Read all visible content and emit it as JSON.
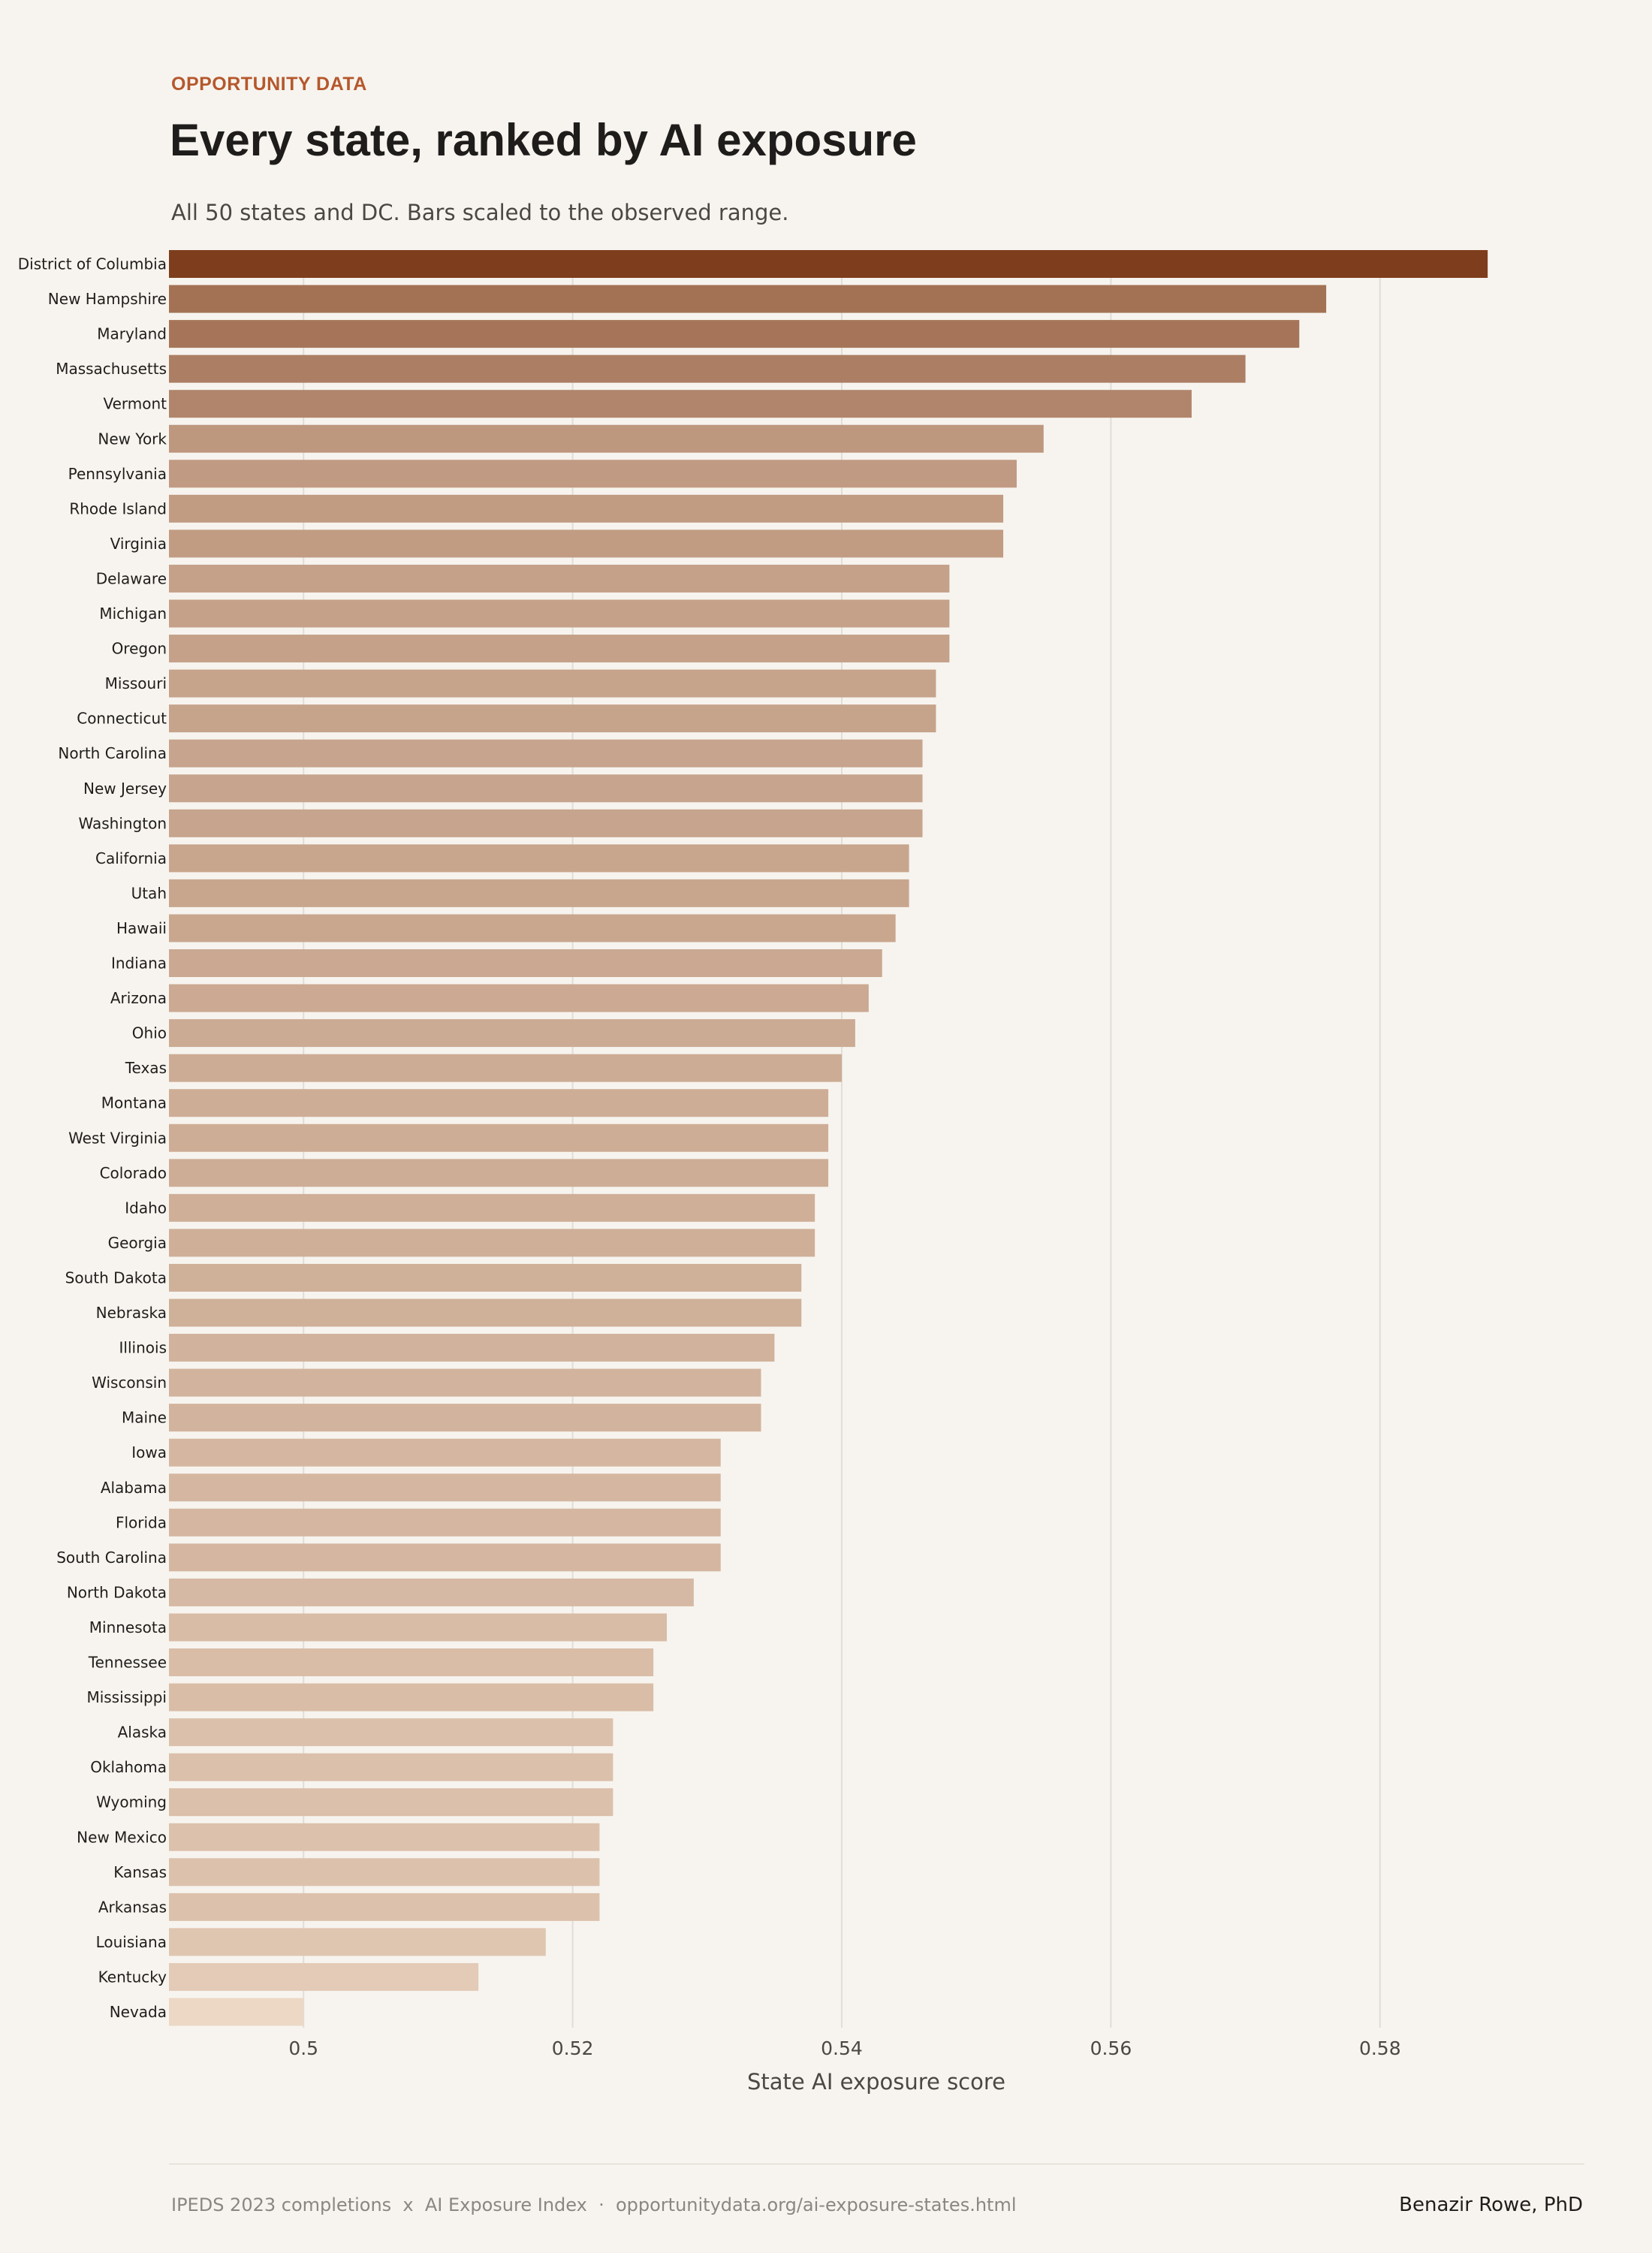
{
  "header": {
    "eyebrow": "OPPORTUNITY DATA",
    "title": "Every state, ranked by AI exposure",
    "subtitle": "All 50 states and DC. Bars scaled to the observed range."
  },
  "footer": {
    "source": "IPEDS 2023 completions  x  AI Exposure Index  ·  opportunitydata.org/ai-exposure-states.html",
    "author": "Benazir Rowe, PhD"
  },
  "colors": {
    "background": "#f7f4ef",
    "bar_dark": "#7e3d1c",
    "bar_light": "#ecd8c5",
    "eyebrow": "#b5582c",
    "grid": "#e2ddd6"
  },
  "chart_data": {
    "type": "bar",
    "orientation": "horizontal",
    "xlabel": "State AI exposure score",
    "ylabel": "",
    "xlim": [
      0.49,
      0.59
    ],
    "xticks": [
      0.5,
      0.52,
      0.54,
      0.56,
      0.58
    ],
    "xtick_labels": [
      "0.5",
      "0.52",
      "0.54",
      "0.56",
      "0.58"
    ],
    "grid": "vertical",
    "categories": [
      "District of Columbia",
      "New Hampshire",
      "Maryland",
      "Massachusetts",
      "Vermont",
      "New York",
      "Pennsylvania",
      "Rhode Island",
      "Virginia",
      "Delaware",
      "Michigan",
      "Oregon",
      "Missouri",
      "Connecticut",
      "North Carolina",
      "New Jersey",
      "Washington",
      "California",
      "Utah",
      "Hawaii",
      "Indiana",
      "Arizona",
      "Ohio",
      "Texas",
      "Montana",
      "West Virginia",
      "Colorado",
      "Idaho",
      "Georgia",
      "South Dakota",
      "Nebraska",
      "Illinois",
      "Wisconsin",
      "Maine",
      "Iowa",
      "Alabama",
      "Florida",
      "South Carolina",
      "North Dakota",
      "Minnesota",
      "Tennessee",
      "Mississippi",
      "Alaska",
      "Oklahoma",
      "Wyoming",
      "New Mexico",
      "Kansas",
      "Arkansas",
      "Louisiana",
      "Kentucky",
      "Nevada"
    ],
    "values": [
      0.588,
      0.576,
      0.574,
      0.57,
      0.566,
      0.555,
      0.553,
      0.552,
      0.552,
      0.548,
      0.548,
      0.548,
      0.547,
      0.547,
      0.546,
      0.546,
      0.546,
      0.545,
      0.545,
      0.544,
      0.543,
      0.542,
      0.541,
      0.54,
      0.539,
      0.539,
      0.539,
      0.538,
      0.538,
      0.537,
      0.537,
      0.535,
      0.534,
      0.534,
      0.531,
      0.531,
      0.531,
      0.531,
      0.529,
      0.527,
      0.526,
      0.526,
      0.523,
      0.523,
      0.523,
      0.522,
      0.522,
      0.522,
      0.518,
      0.513,
      0.5
    ]
  }
}
